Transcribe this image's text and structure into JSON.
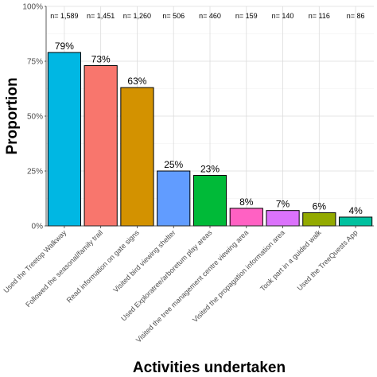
{
  "chart_data": {
    "type": "bar",
    "xlabel": "Activities undertaken",
    "ylabel": "Proportion",
    "ylim": [
      0,
      100
    ],
    "y_ticks": [
      "0%",
      "25%",
      "50%",
      "75%",
      "100%"
    ],
    "grid": true,
    "categories": [
      "Used the Treetop Walkway",
      "Followed the seasonal/family trail",
      "Read information on gate signs",
      "Visited bird viewing shelter",
      "Used Exploratree/arboretum play areas",
      "Visited the tree management centre viewing area",
      "Visited the propagation information area",
      "Took part in a guided walk",
      "Used the TreeQuests App"
    ],
    "values": [
      79,
      73,
      63,
      25,
      23,
      8,
      7,
      6,
      4
    ],
    "value_labels": [
      "79%",
      "73%",
      "63%",
      "25%",
      "23%",
      "8%",
      "7%",
      "6%",
      "4%"
    ],
    "n_labels": [
      "n= 1,589",
      "n= 1,451",
      "n= 1,260",
      "n= 506",
      "n= 460",
      "n= 159",
      "n= 140",
      "n= 116",
      "n= 86"
    ],
    "colors": [
      "#00B7E3",
      "#F8766D",
      "#D39200",
      "#619CFF",
      "#00BA38",
      "#FF61C3",
      "#DB72FB",
      "#93AA00",
      "#00C19F"
    ]
  }
}
